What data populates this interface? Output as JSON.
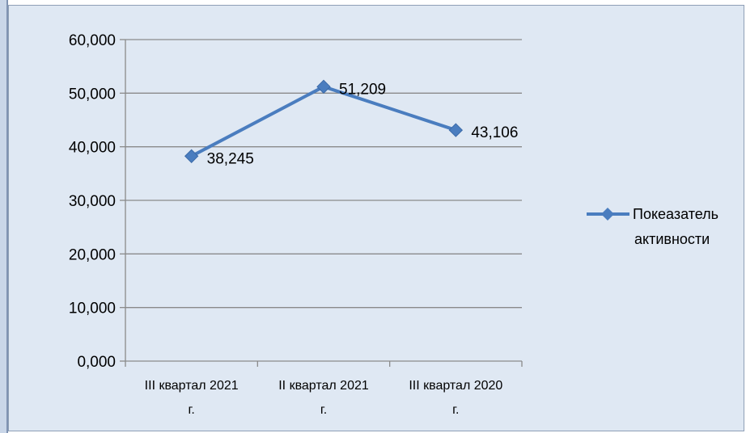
{
  "chart_data": {
    "type": "line",
    "categories": [
      [
        "III квартал 2021",
        "г."
      ],
      [
        "II квартал 2021",
        "г."
      ],
      [
        "III квартал 2020",
        "г."
      ]
    ],
    "series": [
      {
        "name": "Покеазатель активности",
        "name_lines": [
          "Покеазатель",
          "активности"
        ],
        "values": [
          38.245,
          51.209,
          43.106
        ],
        "labels": [
          "38,245",
          "51,209",
          "43,106"
        ],
        "color": "#4a7dbf"
      }
    ],
    "yticks": [
      "0,000",
      "10,000",
      "20,000",
      "30,000",
      "40,000",
      "50,000",
      "60,000"
    ],
    "ylim": [
      0,
      60
    ],
    "grid": true,
    "legend": "right"
  }
}
